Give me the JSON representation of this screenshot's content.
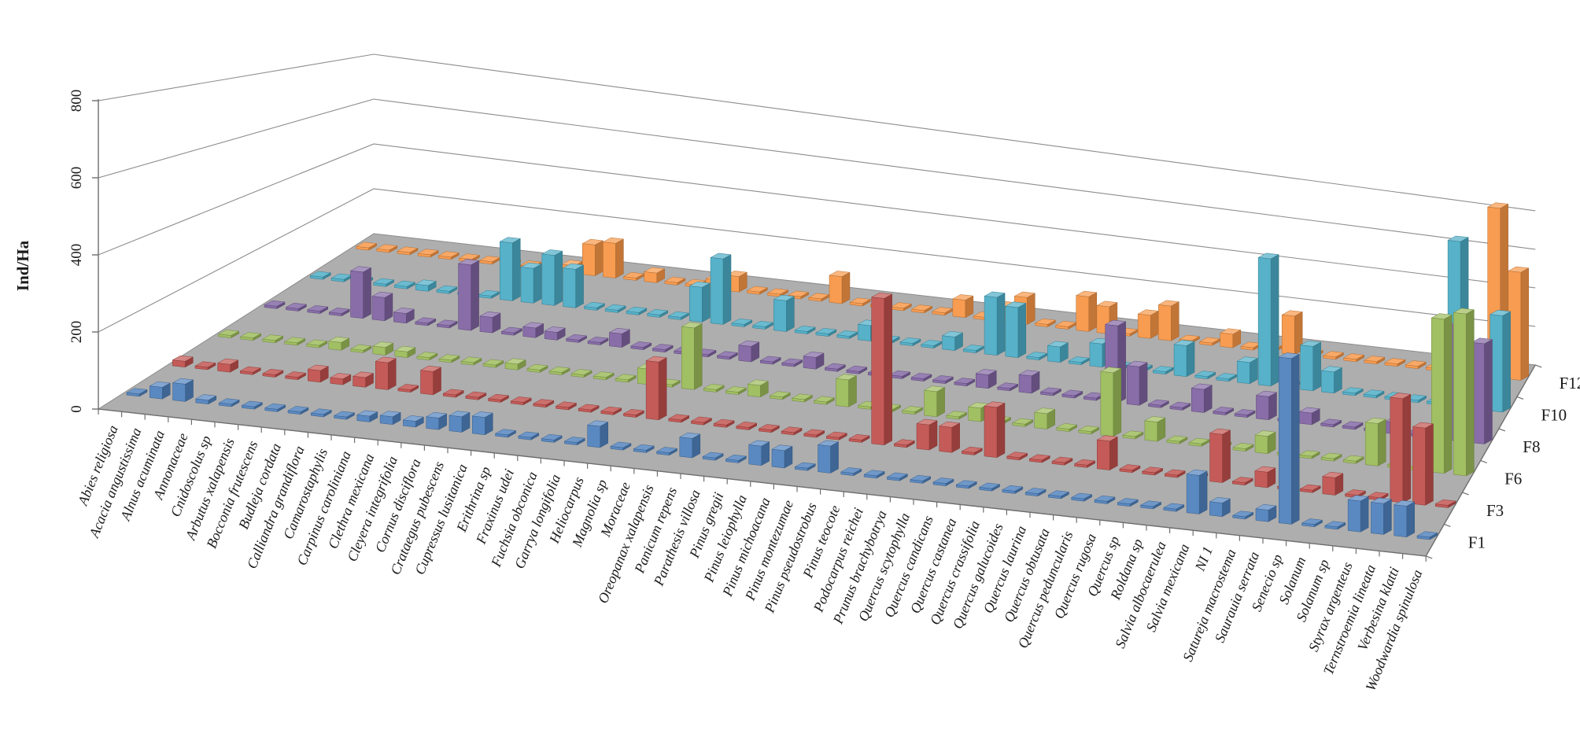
{
  "chart_data": {
    "type": "bar",
    "subtype": "3d-column",
    "title": "",
    "xlabel": "",
    "ylabel": "Ind/Ha",
    "ylim": [
      0,
      800
    ],
    "y_ticks": [
      0,
      200,
      400,
      600,
      800
    ],
    "grid": true,
    "legend_position": "none",
    "depth_axis_labels": [
      "F1",
      "F3",
      "F6",
      "F8",
      "F10",
      "F12"
    ],
    "colors": {
      "floor": "#AEAEAE",
      "wall": "#FFFFFF",
      "gridline": "#8C8C8C",
      "axis": "#6E6E6E",
      "text": "#1a1a1a"
    },
    "categories": [
      "Abies religiosa",
      "Acacia angustissima",
      "Alnus acuminata",
      "Annonaceae",
      "Cnidoscolus sp",
      "Arbutus xalapensis",
      "Bocconia frutescens",
      "Budleja cordata",
      "Calliandra grandiflora",
      "Camarostaphylis",
      "Carpinus caroliniana",
      "Clethra mexicana",
      "Cleyera integrifolia",
      "Cornus disciflora",
      "Crataegus pubescens",
      "Cupressus lusitanica",
      "Erithrina sp",
      "Fraxinus udei",
      "Fuchsia obconica",
      "Garrya longifolia",
      "Heliocarpus",
      "Magnolia sp",
      "Moraceae",
      "Oreopanax xalapensis",
      "Panicum repens",
      "Parathesis villosa",
      "Pinus gregii",
      "Pinus leiophylla",
      "Pinus michoacana",
      "Pinus montezumae",
      "Pinus pseudostrobus",
      "Pinus teocote",
      "Podocarpus reichei",
      "Prunus brachybotrya",
      "Quercus  scytophylla",
      "Quercus candicans",
      "Quercus castanea",
      "Quercus crassifolia",
      "Quercus galucoides",
      "Quercus laurina",
      "Quercus obtusata",
      "Quercus peduncularis",
      "Quercus rugosa",
      "Quercus sp",
      "Roldana sp",
      "Salvia albocaerulea",
      "Salvia mexicana",
      "NI 1",
      "Satureja macrostema",
      "Saurauia serrata",
      "Senecio sp",
      "Solanum",
      "Solanum sp",
      "Styrax argenteus",
      "Ternstroemia lineata",
      "Verbesina klatti",
      "Woodwardia spinulosa"
    ],
    "series": [
      {
        "name": "F1",
        "color": "#4F81BD",
        "values": [
          0,
          30,
          45,
          10,
          0,
          0,
          0,
          0,
          0,
          0,
          15,
          20,
          15,
          30,
          40,
          45,
          0,
          0,
          0,
          0,
          55,
          0,
          0,
          0,
          50,
          0,
          0,
          50,
          45,
          0,
          70,
          0,
          0,
          0,
          0,
          0,
          0,
          0,
          0,
          0,
          0,
          0,
          0,
          0,
          0,
          0,
          100,
          35,
          0,
          30,
          430,
          0,
          0,
          80,
          80,
          80,
          0
        ]
      },
      {
        "name": "F3",
        "color": "#C0504D",
        "values": [
          15,
          0,
          20,
          0,
          0,
          0,
          30,
          15,
          25,
          70,
          0,
          60,
          0,
          0,
          0,
          0,
          0,
          0,
          0,
          0,
          0,
          150,
          0,
          0,
          0,
          0,
          0,
          0,
          0,
          0,
          0,
          380,
          0,
          65,
          65,
          0,
          130,
          0,
          0,
          0,
          0,
          75,
          0,
          0,
          0,
          0,
          125,
          0,
          40,
          0,
          0,
          45,
          0,
          0,
          270,
          200,
          0
        ]
      },
      {
        "name": "F6",
        "color": "#9BBB59",
        "values": [
          0,
          0,
          0,
          0,
          0,
          20,
          0,
          20,
          15,
          0,
          0,
          0,
          0,
          15,
          0,
          0,
          0,
          0,
          0,
          40,
          0,
          160,
          0,
          0,
          30,
          0,
          0,
          0,
          70,
          0,
          0,
          0,
          65,
          0,
          35,
          0,
          0,
          40,
          0,
          0,
          165,
          0,
          50,
          0,
          0,
          0,
          0,
          45,
          0,
          0,
          0,
          0,
          110,
          0,
          0,
          400,
          420
        ]
      },
      {
        "name": "F8",
        "color": "#8064A2",
        "values": [
          0,
          0,
          0,
          0,
          120,
          60,
          25,
          0,
          0,
          170,
          40,
          0,
          25,
          20,
          0,
          0,
          35,
          0,
          0,
          0,
          0,
          0,
          40,
          0,
          0,
          30,
          0,
          0,
          0,
          0,
          0,
          0,
          0,
          35,
          0,
          45,
          0,
          0,
          0,
          200,
          100,
          0,
          0,
          60,
          0,
          0,
          60,
          0,
          30,
          0,
          0,
          0,
          30,
          0,
          0,
          300,
          260
        ]
      },
      {
        "name": "F10",
        "color": "#4BACC6",
        "values": [
          0,
          0,
          0,
          0,
          0,
          15,
          0,
          0,
          0,
          150,
          90,
          130,
          100,
          0,
          0,
          0,
          0,
          0,
          90,
          170,
          0,
          0,
          80,
          0,
          0,
          0,
          40,
          0,
          0,
          0,
          35,
          0,
          150,
          130,
          0,
          40,
          0,
          60,
          0,
          0,
          0,
          80,
          0,
          0,
          55,
          330,
          0,
          115,
          55,
          0,
          0,
          0,
          0,
          0,
          430,
          0,
          250
        ]
      },
      {
        "name": "F12",
        "color": "#F79646",
        "values": [
          0,
          0,
          0,
          0,
          0,
          0,
          0,
          0,
          0,
          0,
          20,
          80,
          90,
          0,
          25,
          0,
          0,
          25,
          40,
          0,
          0,
          0,
          0,
          70,
          0,
          0,
          0,
          0,
          0,
          45,
          0,
          40,
          70,
          0,
          0,
          90,
          70,
          0,
          60,
          90,
          0,
          0,
          35,
          0,
          0,
          100,
          0,
          0,
          0,
          0,
          0,
          0,
          0,
          0,
          0,
          440,
          280
        ]
      }
    ]
  }
}
